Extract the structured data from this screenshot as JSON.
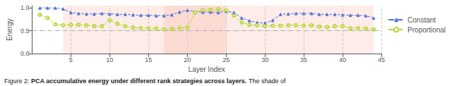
{
  "chart_data": {
    "type": "line",
    "xlabel": "Layer Index",
    "ylabel": "Energy",
    "xlim": [
      0,
      45
    ],
    "ylim": [
      0.0,
      1.05
    ],
    "xticks": [
      5,
      10,
      15,
      20,
      25,
      30,
      35,
      40,
      45
    ],
    "yticks": [
      {
        "value": 0.0,
        "label": "0.0"
      },
      0.5,
      {
        "value": 1.0,
        "label": "1.0"
      }
    ],
    "grid": "x",
    "legend": "right",
    "hline": 0.5,
    "shaded_regions": [
      {
        "xmin": 4,
        "xmax": 44,
        "color": "#f08060"
      },
      {
        "xmin": 17,
        "xmax": 25,
        "color": "#f08060"
      }
    ],
    "x": [
      1,
      2,
      3,
      4,
      5,
      6,
      7,
      8,
      9,
      10,
      11,
      12,
      13,
      14,
      15,
      16,
      17,
      18,
      19,
      20,
      21,
      22,
      23,
      24,
      25,
      26,
      27,
      28,
      29,
      30,
      31,
      32,
      33,
      34,
      35,
      36,
      37,
      38,
      39,
      40,
      41,
      42,
      43,
      44
    ],
    "series": [
      {
        "name": "Constant",
        "marker": "triangle",
        "line_style": "dashed",
        "values": [
          1.0,
          1.0,
          1.0,
          0.98,
          0.9,
          0.88,
          0.87,
          0.87,
          0.88,
          0.87,
          0.86,
          0.86,
          0.85,
          0.84,
          0.84,
          0.83,
          0.83,
          0.85,
          0.91,
          0.95,
          0.92,
          0.91,
          0.91,
          0.9,
          0.93,
          0.9,
          0.78,
          0.72,
          0.68,
          0.67,
          0.73,
          0.86,
          0.87,
          0.88,
          0.88,
          0.88,
          0.86,
          0.86,
          0.86,
          0.85,
          0.84,
          0.84,
          0.83,
          0.78
        ]
      },
      {
        "name": "Proportional",
        "marker": "circle",
        "line_style": "dashed",
        "values": [
          0.85,
          0.78,
          0.64,
          0.62,
          0.63,
          0.63,
          0.62,
          0.6,
          0.6,
          0.73,
          0.65,
          0.6,
          0.57,
          0.56,
          0.55,
          0.55,
          0.53,
          0.54,
          0.56,
          0.57,
          0.9,
          0.95,
          0.96,
          0.97,
          0.95,
          0.83,
          0.68,
          0.63,
          0.62,
          0.6,
          0.61,
          0.61,
          0.62,
          0.62,
          0.61,
          0.62,
          0.59,
          0.58,
          0.6,
          0.6,
          0.55,
          0.56,
          0.55,
          0.53
        ]
      }
    ],
    "caption": [
      "Figure 2: ",
      "PCA accumulative energy under different rank strategies across layers.",
      " The shade of"
    ]
  }
}
